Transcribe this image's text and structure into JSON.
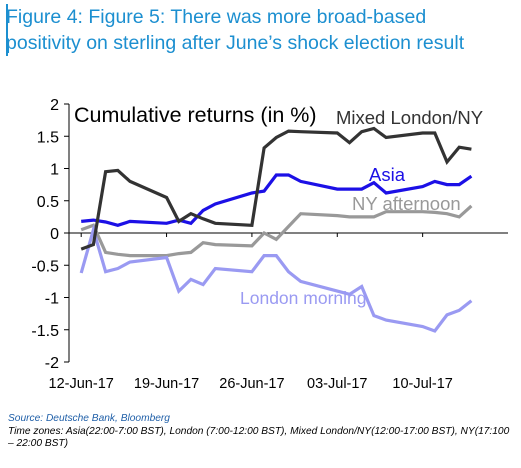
{
  "title": "Figure 4: Figure 5: There was more broad-based positivity on sterling after June’s shock election result",
  "title_lines": [
    "Figure 4: Figure 5: There was more broad-based",
    "positivity on sterling after June’s shock election result"
  ],
  "source": "Source: Deutsche Bank, Bloomberg",
  "time_zones": "Time zones: Asia(22:00-7:00 BST), London (7:00-12:00 BST), Mixed London/NY(12:00-17:00 BST), NY(17:100 – 22:00 BST)",
  "chart_data": {
    "type": "line",
    "title": "Cumulative returns (in %)",
    "xlabel": "",
    "ylabel": "",
    "x_type": "date",
    "xlim": [
      "2017-06-11",
      "2017-07-17"
    ],
    "ylim": [
      -2,
      2
    ],
    "y_ticks": [
      -2,
      -1.5,
      -1,
      -0.5,
      0,
      0.5,
      1,
      1.5,
      2
    ],
    "y_tick_labels": [
      "-2",
      "-1.5",
      "-1",
      "-0.5",
      "0",
      "0.5",
      "1",
      "1.5",
      "2"
    ],
    "x_ticks": [
      "2017-06-12",
      "2017-06-19",
      "2017-06-26",
      "2017-07-03",
      "2017-07-10"
    ],
    "x_tick_labels": [
      "12-Jun-17",
      "19-Jun-17",
      "26-Jun-17",
      "03-Jul-17",
      "10-Jul-17"
    ],
    "grid": false,
    "zero_line": true,
    "series": [
      {
        "name": "Mixed London/NY",
        "color": "#333333",
        "x": [
          "2017-06-12",
          "2017-06-13",
          "2017-06-14",
          "2017-06-15",
          "2017-06-16",
          "2017-06-19",
          "2017-06-20",
          "2017-06-21",
          "2017-06-22",
          "2017-06-23",
          "2017-06-26",
          "2017-06-27",
          "2017-06-28",
          "2017-06-29",
          "2017-06-30",
          "2017-07-03",
          "2017-07-04",
          "2017-07-05",
          "2017-07-06",
          "2017-07-07",
          "2017-07-10",
          "2017-07-11",
          "2017-07-12",
          "2017-07-13",
          "2017-07-14"
        ],
        "y": [
          -0.25,
          -0.18,
          0.95,
          0.97,
          0.8,
          0.55,
          0.18,
          0.3,
          0.22,
          0.15,
          0.12,
          1.32,
          1.48,
          1.58,
          1.57,
          1.55,
          1.4,
          1.57,
          1.62,
          1.48,
          1.55,
          1.55,
          1.1,
          1.33,
          1.3
        ]
      },
      {
        "name": "Asia",
        "color": "#1c10e6",
        "x": [
          "2017-06-12",
          "2017-06-13",
          "2017-06-14",
          "2017-06-15",
          "2017-06-16",
          "2017-06-19",
          "2017-06-20",
          "2017-06-21",
          "2017-06-22",
          "2017-06-23",
          "2017-06-26",
          "2017-06-27",
          "2017-06-28",
          "2017-06-29",
          "2017-06-30",
          "2017-07-03",
          "2017-07-04",
          "2017-07-05",
          "2017-07-06",
          "2017-07-07",
          "2017-07-10",
          "2017-07-11",
          "2017-07-12",
          "2017-07-13",
          "2017-07-14"
        ],
        "y": [
          0.18,
          0.2,
          0.17,
          0.12,
          0.18,
          0.15,
          0.2,
          0.15,
          0.35,
          0.45,
          0.62,
          0.65,
          0.9,
          0.9,
          0.8,
          0.68,
          0.68,
          0.68,
          0.78,
          0.62,
          0.72,
          0.8,
          0.75,
          0.75,
          0.88
        ]
      },
      {
        "name": "NY afternoon",
        "color": "#999999",
        "x": [
          "2017-06-12",
          "2017-06-13",
          "2017-06-14",
          "2017-06-15",
          "2017-06-16",
          "2017-06-19",
          "2017-06-20",
          "2017-06-21",
          "2017-06-22",
          "2017-06-23",
          "2017-06-26",
          "2017-06-27",
          "2017-06-28",
          "2017-06-29",
          "2017-06-30",
          "2017-07-03",
          "2017-07-04",
          "2017-07-05",
          "2017-07-06",
          "2017-07-07",
          "2017-07-10",
          "2017-07-11",
          "2017-07-12",
          "2017-07-13",
          "2017-07-14"
        ],
        "y": [
          0.05,
          0.12,
          -0.3,
          -0.33,
          -0.35,
          -0.35,
          -0.32,
          -0.3,
          -0.15,
          -0.18,
          -0.2,
          0.0,
          -0.1,
          0.1,
          0.3,
          0.27,
          0.25,
          0.25,
          0.25,
          0.33,
          0.33,
          0.32,
          0.3,
          0.25,
          0.42
        ]
      },
      {
        "name": "London morning",
        "color": "#9a9af2",
        "x": [
          "2017-06-12",
          "2017-06-13",
          "2017-06-14",
          "2017-06-15",
          "2017-06-16",
          "2017-06-19",
          "2017-06-20",
          "2017-06-21",
          "2017-06-22",
          "2017-06-23",
          "2017-06-26",
          "2017-06-27",
          "2017-06-28",
          "2017-06-29",
          "2017-06-30",
          "2017-07-03",
          "2017-07-04",
          "2017-07-05",
          "2017-07-06",
          "2017-07-07",
          "2017-07-10",
          "2017-07-11",
          "2017-07-12",
          "2017-07-13",
          "2017-07-14"
        ],
        "y": [
          -0.62,
          0.05,
          -0.6,
          -0.55,
          -0.45,
          -0.38,
          -0.9,
          -0.72,
          -0.8,
          -0.55,
          -0.6,
          -0.35,
          -0.35,
          -0.6,
          -0.75,
          -0.9,
          -0.95,
          -0.83,
          -1.28,
          -1.35,
          -1.45,
          -1.52,
          -1.27,
          -1.2,
          -1.05
        ]
      }
    ]
  }
}
